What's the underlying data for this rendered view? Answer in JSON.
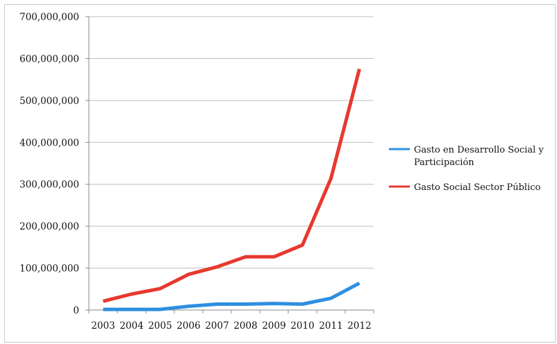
{
  "chart_data": {
    "type": "line",
    "categories": [
      "2003",
      "2004",
      "2005",
      "2006",
      "2007",
      "2008",
      "2009",
      "2010",
      "2011",
      "2012"
    ],
    "series": [
      {
        "name_lines": [
          "Gasto en Desarrollo Social y",
          "Participación"
        ],
        "color": "#2e8fe0",
        "values": [
          1500000,
          1500000,
          1500000,
          9000000,
          14000000,
          14000000,
          15500000,
          14000000,
          28000000,
          64000000
        ]
      },
      {
        "name_lines": [
          "Gasto Social Sector Público"
        ],
        "color": "#e8382f",
        "values": [
          21000000,
          38000000,
          51000000,
          85000000,
          103000000,
          127000000,
          127000000,
          155000000,
          314000000,
          575000000
        ]
      }
    ],
    "y_ticks": [
      0,
      100000000,
      200000000,
      300000000,
      400000000,
      500000000,
      600000000,
      700000000
    ],
    "y_tick_labels": [
      "0",
      "100,000,000",
      "200,000,000",
      "300,000,000",
      "400,000,000",
      "500,000,000",
      "600,000,000",
      "700,000,000"
    ],
    "ylim": [
      0,
      700000000
    ],
    "grid": true,
    "legend_position": "right"
  }
}
